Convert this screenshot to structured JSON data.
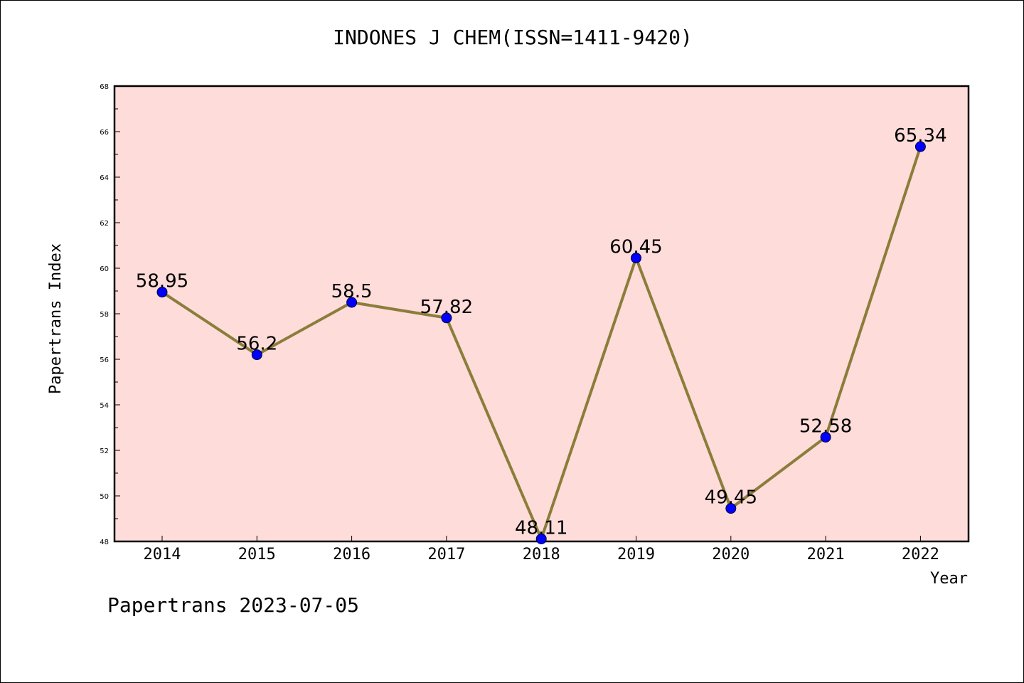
{
  "chart_data": {
    "type": "line",
    "title": "INDONES J CHEM(ISSN=1411-9420)",
    "xlabel": "Year",
    "ylabel": "Papertrans Index",
    "categories": [
      "2014",
      "2015",
      "2016",
      "2017",
      "2018",
      "2019",
      "2020",
      "2021",
      "2022"
    ],
    "values": [
      58.95,
      56.2,
      58.5,
      57.82,
      48.11,
      60.45,
      49.45,
      52.58,
      65.34
    ],
    "data_labels": [
      "58.95",
      "56.2",
      "58.5",
      "57.82",
      "48.11",
      "60.45",
      "49.45",
      "52.58",
      "65.34"
    ],
    "ylim": [
      48,
      68
    ],
    "y_ticks": [
      "48",
      "50",
      "52",
      "54",
      "56",
      "58",
      "60",
      "62",
      "64",
      "66",
      "68"
    ],
    "grid": false,
    "legend": "none",
    "colors": {
      "line": "#8b7d3a",
      "marker": "#0000ff",
      "plot_background": "#fddcda"
    }
  },
  "footer": "Papertrans 2023-07-05"
}
